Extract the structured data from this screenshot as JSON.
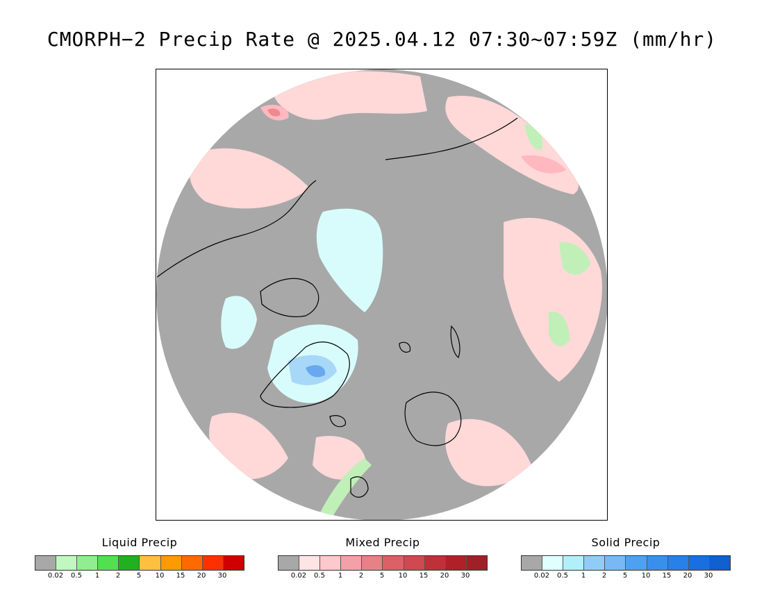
{
  "title": "CMORPH−2 Precip Rate @ 2025.04.12 07:30~07:59Z (mm/hr)",
  "colors": {
    "no_data": "#ffffff",
    "no_precip": "#a8a8a8",
    "coast": "#000000",
    "liquid_light": "#c0f0b8",
    "mixed_light": "#ffd8d8",
    "mixed_mid": "#ffb8c0",
    "mixed_strong": "#f08890",
    "solid_light": "#d8fcfc",
    "solid_mid": "#a8d8f8",
    "solid_strong": "#68a8f0"
  },
  "legends": [
    {
      "name": "liquid",
      "title": "Liquid Precip",
      "colors": [
        "#a8a8a8",
        "#c0f8c0",
        "#90ee90",
        "#50e050",
        "#20b020",
        "#ffc040",
        "#ff9a00",
        "#ff6a00",
        "#ff3000",
        "#d00000"
      ],
      "ticks": [
        "0.02",
        "0.5",
        "1",
        "2",
        "5",
        "10",
        "15",
        "20",
        "30"
      ]
    },
    {
      "name": "mixed",
      "title": "Mixed Precip",
      "colors": [
        "#a8a8a8",
        "#ffe4e4",
        "#ffc8cc",
        "#f4a0a8",
        "#e88088",
        "#dc6068",
        "#d04850",
        "#c03038",
        "#b02028",
        "#a02028"
      ],
      "ticks": [
        "0.02",
        "0.5",
        "1",
        "2",
        "5",
        "10",
        "15",
        "20",
        "30"
      ]
    },
    {
      "name": "solid",
      "title": "Solid Precip",
      "colors": [
        "#a8a8a8",
        "#e0ffff",
        "#b0f0f8",
        "#90ccf8",
        "#78b8f4",
        "#50a0f0",
        "#3890ec",
        "#2880e8",
        "#1870e0",
        "#1060d0"
      ],
      "ticks": [
        "0.02",
        "0.5",
        "1",
        "2",
        "5",
        "10",
        "15",
        "20",
        "30"
      ]
    }
  ]
}
